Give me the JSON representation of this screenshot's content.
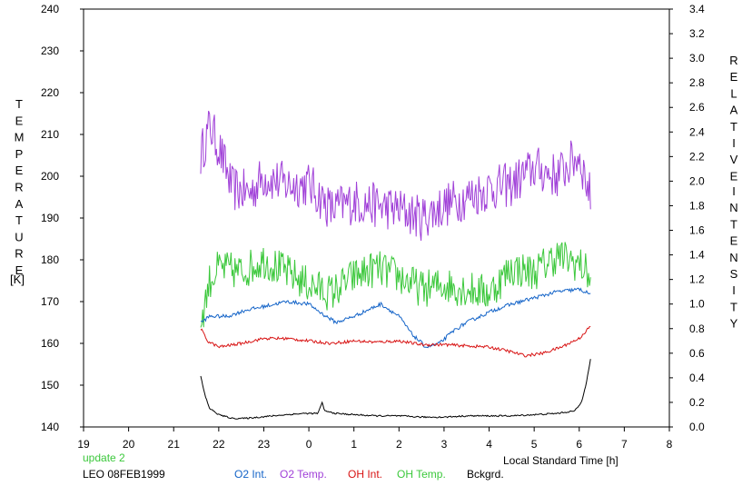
{
  "chart_data": {
    "type": "line",
    "left_axis": {
      "label_letters": [
        "T",
        "E",
        "M",
        "P",
        "E",
        "R",
        "A",
        "T",
        "U",
        "R",
        "E"
      ],
      "unit": "[K]",
      "range": [
        140,
        240
      ],
      "ticks": [
        "140",
        "150",
        "160",
        "170",
        "180",
        "190",
        "200",
        "210",
        "220",
        "230",
        "240"
      ]
    },
    "right_axis": {
      "label_letters_1": [
        "R",
        "E",
        "L",
        "A",
        "T",
        "I",
        "V",
        "E"
      ],
      "label_letters_2": [
        "I",
        "N",
        "T",
        "E",
        "N",
        "S",
        "I",
        "T",
        "Y"
      ],
      "range": [
        0.0,
        3.4
      ],
      "ticks": [
        "0.0",
        "0.2",
        "0.4",
        "0.6",
        "0.8",
        "1.0",
        "1.2",
        "1.4",
        "1.6",
        "1.8",
        "2.0",
        "2.2",
        "2.4",
        "2.6",
        "2.8",
        "3.0",
        "3.2",
        "3.4"
      ]
    },
    "x_axis": {
      "label": "Local Standard Time [h]",
      "range": [
        19,
        32
      ],
      "ticks": [
        "19",
        "20",
        "21",
        "22",
        "23",
        "0",
        "1",
        "2",
        "3",
        "4",
        "5",
        "6",
        "7",
        "8"
      ]
    },
    "time_range": [
      21.6,
      30.25
    ],
    "series": [
      {
        "name": "O2 Int.",
        "axis": "right",
        "color": "#1464c8",
        "keypoints": [
          [
            21.6,
            0.85
          ],
          [
            21.8,
            0.9
          ],
          [
            22.2,
            0.9
          ],
          [
            22.6,
            0.95
          ],
          [
            23.0,
            0.98
          ],
          [
            23.5,
            1.02
          ],
          [
            24.0,
            1.0
          ],
          [
            24.3,
            0.92
          ],
          [
            24.6,
            0.85
          ],
          [
            25.0,
            0.9
          ],
          [
            25.3,
            0.95
          ],
          [
            25.6,
            1.0
          ],
          [
            26.0,
            0.9
          ],
          [
            26.3,
            0.75
          ],
          [
            26.6,
            0.65
          ],
          [
            26.9,
            0.68
          ],
          [
            27.2,
            0.78
          ],
          [
            27.5,
            0.85
          ],
          [
            27.8,
            0.9
          ],
          [
            28.1,
            0.95
          ],
          [
            28.5,
            1.0
          ],
          [
            29.0,
            1.05
          ],
          [
            29.5,
            1.1
          ],
          [
            30.0,
            1.12
          ],
          [
            30.25,
            1.08
          ]
        ],
        "noise": 0.015
      },
      {
        "name": "O2 Temp.",
        "axis": "left",
        "color": "#a040d8",
        "keypoints": [
          [
            21.6,
            205
          ],
          [
            21.8,
            212
          ],
          [
            22.0,
            207
          ],
          [
            22.3,
            197
          ],
          [
            22.7,
            196
          ],
          [
            23.0,
            200
          ],
          [
            23.5,
            198
          ],
          [
            24.0,
            198
          ],
          [
            24.5,
            192
          ],
          [
            25.0,
            194
          ],
          [
            25.5,
            193
          ],
          [
            26.0,
            192
          ],
          [
            26.5,
            190
          ],
          [
            27.0,
            193
          ],
          [
            27.5,
            195
          ],
          [
            28.0,
            197
          ],
          [
            28.5,
            198
          ],
          [
            29.0,
            202
          ],
          [
            29.5,
            200
          ],
          [
            30.0,
            205
          ],
          [
            30.25,
            195
          ]
        ],
        "noise": 5.5
      },
      {
        "name": "OH Int.",
        "axis": "right",
        "color": "#d81414",
        "keypoints": [
          [
            21.6,
            0.8
          ],
          [
            21.75,
            0.7
          ],
          [
            22.0,
            0.65
          ],
          [
            22.5,
            0.68
          ],
          [
            23.0,
            0.72
          ],
          [
            23.5,
            0.72
          ],
          [
            24.0,
            0.7
          ],
          [
            24.5,
            0.68
          ],
          [
            25.0,
            0.7
          ],
          [
            25.5,
            0.69
          ],
          [
            26.0,
            0.7
          ],
          [
            26.5,
            0.67
          ],
          [
            27.0,
            0.67
          ],
          [
            27.5,
            0.66
          ],
          [
            28.0,
            0.65
          ],
          [
            28.4,
            0.62
          ],
          [
            28.8,
            0.58
          ],
          [
            29.2,
            0.6
          ],
          [
            29.6,
            0.65
          ],
          [
            30.0,
            0.72
          ],
          [
            30.25,
            0.82
          ]
        ],
        "noise": 0.012
      },
      {
        "name": "OH Temp.",
        "axis": "left",
        "color": "#3cc83c",
        "keypoints": [
          [
            21.6,
            165
          ],
          [
            21.8,
            175
          ],
          [
            22.0,
            178
          ],
          [
            22.5,
            177
          ],
          [
            23.0,
            180
          ],
          [
            23.5,
            177
          ],
          [
            24.0,
            174
          ],
          [
            24.5,
            172
          ],
          [
            25.0,
            176
          ],
          [
            25.5,
            178
          ],
          [
            26.0,
            176
          ],
          [
            26.5,
            173
          ],
          [
            27.0,
            174
          ],
          [
            27.5,
            173
          ],
          [
            28.0,
            172
          ],
          [
            28.5,
            178
          ],
          [
            29.0,
            177
          ],
          [
            29.5,
            181
          ],
          [
            30.0,
            179
          ],
          [
            30.25,
            176
          ]
        ],
        "noise": 4.5
      },
      {
        "name": "Bckgrd.",
        "axis": "right",
        "color": "#000000",
        "keypoints": [
          [
            21.6,
            0.41
          ],
          [
            21.7,
            0.25
          ],
          [
            21.8,
            0.15
          ],
          [
            22.0,
            0.1
          ],
          [
            22.3,
            0.07
          ],
          [
            22.6,
            0.07
          ],
          [
            22.9,
            0.08
          ],
          [
            23.2,
            0.09
          ],
          [
            23.5,
            0.1
          ],
          [
            23.9,
            0.11
          ],
          [
            24.2,
            0.11
          ],
          [
            24.3,
            0.2
          ],
          [
            24.35,
            0.13
          ],
          [
            24.6,
            0.11
          ],
          [
            25.0,
            0.1
          ],
          [
            25.5,
            0.09
          ],
          [
            26.0,
            0.09
          ],
          [
            26.5,
            0.08
          ],
          [
            27.0,
            0.08
          ],
          [
            27.5,
            0.09
          ],
          [
            28.0,
            0.09
          ],
          [
            28.5,
            0.09
          ],
          [
            29.0,
            0.1
          ],
          [
            29.5,
            0.11
          ],
          [
            29.9,
            0.13
          ],
          [
            30.05,
            0.2
          ],
          [
            30.15,
            0.35
          ],
          [
            30.25,
            0.55
          ]
        ],
        "noise": 0.006
      }
    ]
  },
  "footer": {
    "update": "update 2",
    "station": "LEO 08FEB1999"
  },
  "colors": {
    "update": "#3cc83c"
  }
}
